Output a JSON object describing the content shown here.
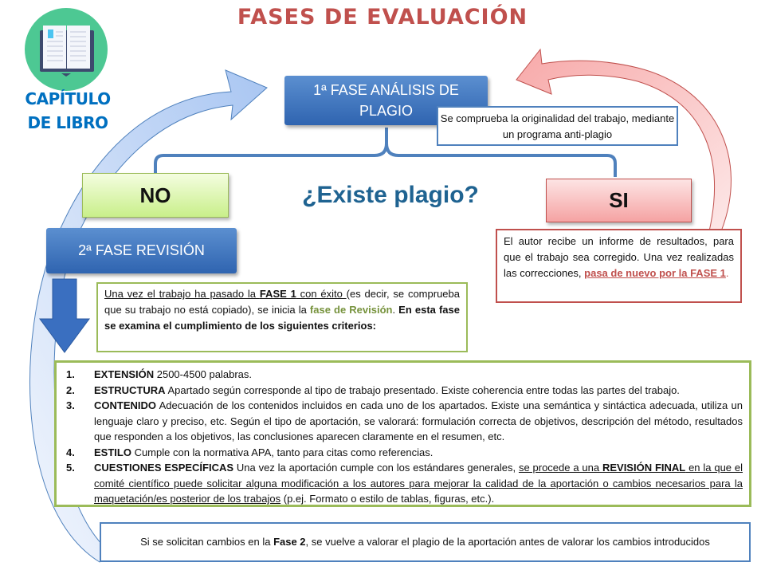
{
  "title": "FASES DE EVALUACIÓN",
  "logo": {
    "line1": "CAPÍTULO",
    "line2": "DE LIBRO",
    "icon": "open-book-icon",
    "color": "#4dc893"
  },
  "fase1": {
    "label": "1ª FASE ANÁLISIS DE PLAGIO",
    "note": "Se comprueba  la originalidad del trabajo, mediante un programa anti-plagio"
  },
  "question": "¿Existe plagio?",
  "no": "NO",
  "si": "SI",
  "si_note": {
    "text": "El autor recibe un informe de resultados, para que el trabajo sea corregido. Una vez realizadas las correcciones, ",
    "link": "pasa de nuevo por la FASE 1",
    "end": "."
  },
  "fase2": {
    "label": "2ª FASE REVISIÓN"
  },
  "fase2_note": {
    "p1": "Una vez el trabajo ha pasado la ",
    "p2": "FASE 1",
    "p3": " con éxito ",
    "p4": "(es decir, se comprueba que su trabajo no está copiado), se inicia la ",
    "p5": "fase de Revisión",
    "p6": ". ",
    "p7": "En esta fase se examina el cumplimiento de los siguientes criterios:"
  },
  "criteria": [
    {
      "num": "1.",
      "head": "EXTENSIÓN",
      "text": " 2500-4500 palabras."
    },
    {
      "num": "2.",
      "head": "ESTRUCTURA",
      "text": " Apartado según corresponde  al tipo de trabajo presentado. Existe coherencia entre todas las partes del trabajo."
    },
    {
      "num": "3.",
      "head": "CONTENIDO",
      "text": " Adecuación de los contenidos  incluidos en cada uno de los apartados. Existe una semántica y sintáctica adecuada, utiliza un lenguaje claro y preciso, etc. Según el tipo de aportación, se valorará: formulación correcta de objetivos, descripción del método, resultados que responden a los objetivos, las conclusiones aparecen claramente en el resumen, etc."
    },
    {
      "num": "4.",
      "head": "ESTILO",
      "text": "   Cumple con la normativa APA, tanto para citas como referencias."
    },
    {
      "num": "5.",
      "head": "CUESTIONES ESPECÍFICAS",
      "text": " Una vez la aportación cumple con los estándares generales,  ",
      "u1": "se procede a una ",
      "u2": "REVISIÓN FINAL",
      "u3": " en la que el comité científico puede solicitar alguna modificación a los autores para mejorar la calidad de la aportación o cambios necesarios para la maquetación/es posterior de los trabajos",
      "tail": " (p.ej. Formato  o estilo de tablas, figuras, etc.)."
    }
  ],
  "bottom_note": {
    "p1": "Si se solicitan cambios en la ",
    "p2": "Fase 2",
    "p3": ", se vuelve a valorar el plagio de la aportación antes de valorar los cambios introducidos"
  },
  "colors": {
    "title": "#c0504d",
    "blue": "#4f81bd",
    "green": "#9bbb59",
    "red": "#c0504d",
    "question": "#1f6391"
  }
}
